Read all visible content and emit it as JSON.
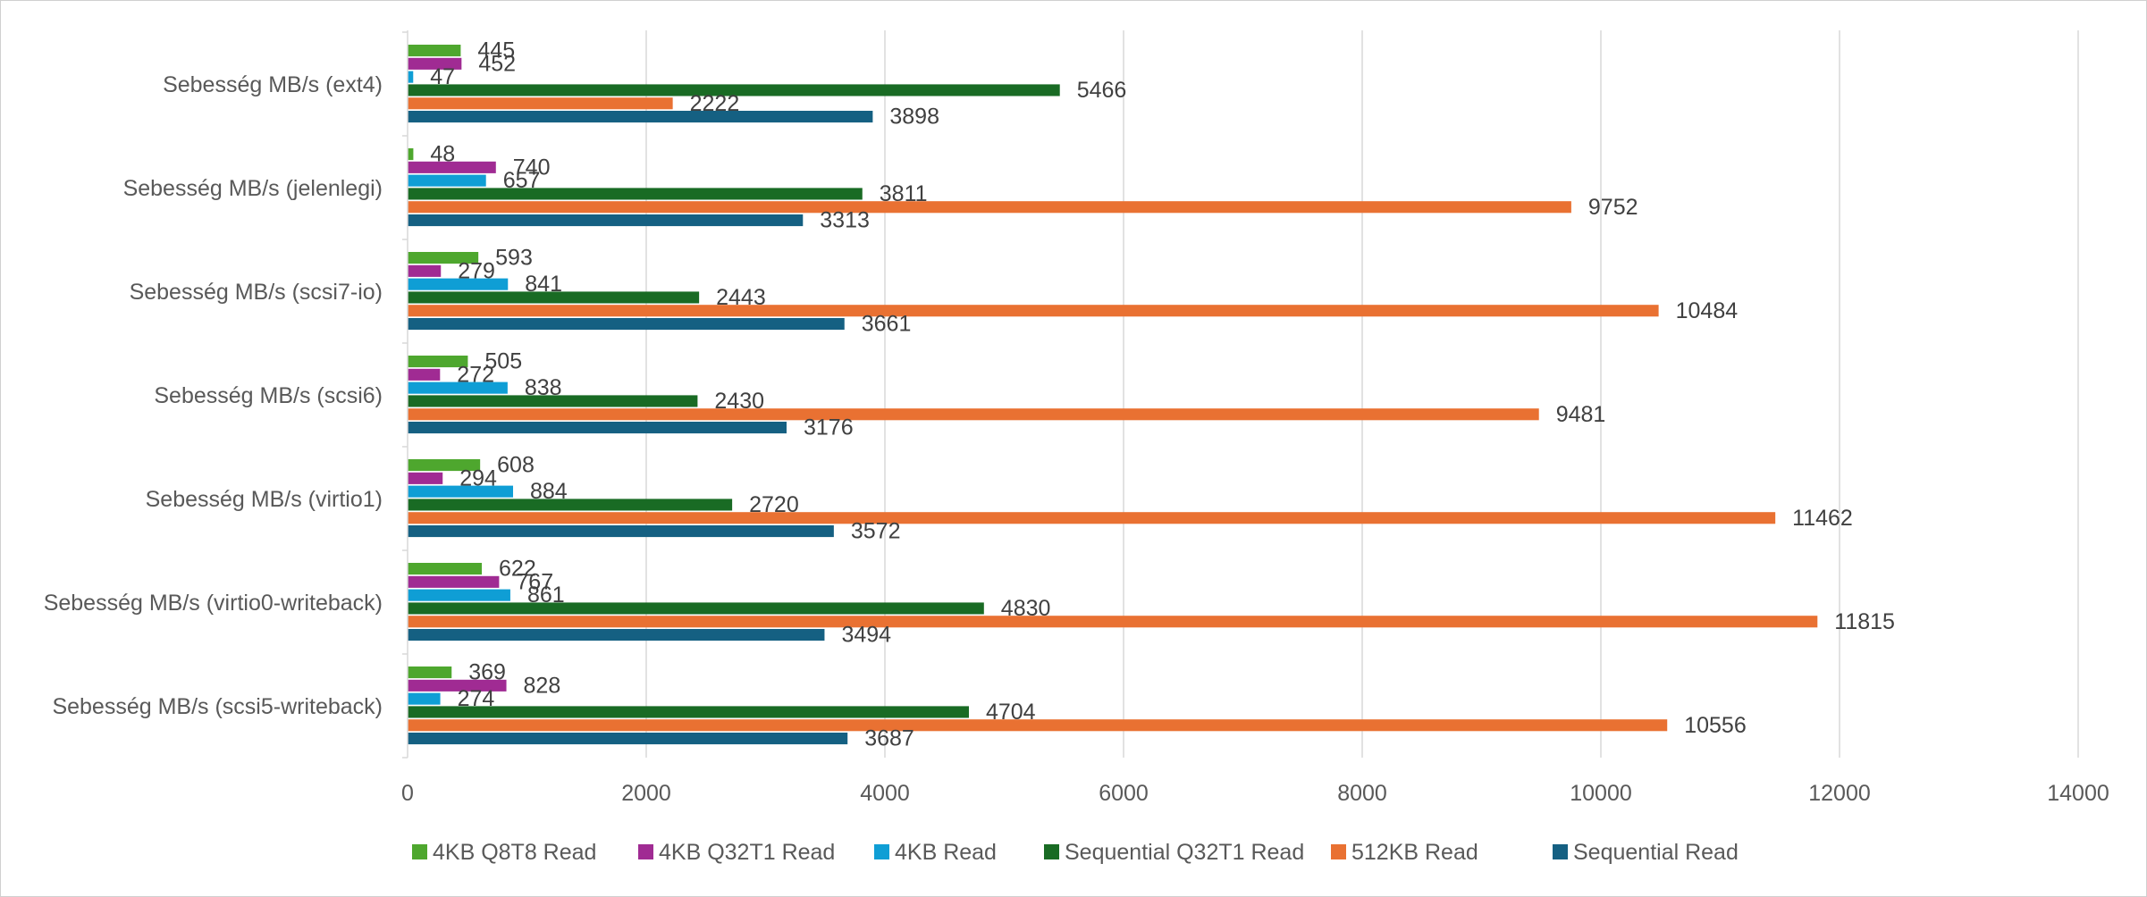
{
  "chart_data": {
    "type": "bar",
    "orientation": "horizontal",
    "title": "",
    "xlabel": "",
    "ylabel": "",
    "xlim": [
      0,
      14000
    ],
    "x_ticks": [
      0,
      2000,
      4000,
      6000,
      8000,
      10000,
      12000,
      14000
    ],
    "grid": "vertical",
    "legend_position": "bottom",
    "categories": [
      "Sebesség MB/s (ext4)",
      "Sebesség MB/s (jelenlegi)",
      "Sebesség MB/s (scsi7-io)",
      "Sebesség MB/s (scsi6)",
      "Sebesség MB/s (virtio1)",
      "Sebesség MB/s (virtio0-writeback)",
      "Sebesség MB/s (scsi5-writeback)"
    ],
    "series": [
      {
        "name": "4KB Q8T8 Read",
        "color": "#4ea72e",
        "values": [
          445,
          48,
          593,
          505,
          608,
          622,
          369
        ]
      },
      {
        "name": "4KB Q32T1 Read",
        "color": "#a02b93",
        "values": [
          452,
          740,
          279,
          272,
          294,
          767,
          828
        ]
      },
      {
        "name": "4KB Read",
        "color": "#0f9ed5",
        "values": [
          47,
          657,
          841,
          838,
          884,
          861,
          274
        ]
      },
      {
        "name": "Sequential Q32T1 Read",
        "color": "#196b24",
        "values": [
          5466,
          3811,
          2443,
          2430,
          2720,
          4830,
          4704
        ]
      },
      {
        "name": "512KB Read",
        "color": "#e97132",
        "values": [
          2222,
          9752,
          10484,
          9481,
          11462,
          11815,
          10556
        ]
      },
      {
        "name": "Sequential Read",
        "color": "#156082",
        "values": [
          3898,
          3313,
          3661,
          3176,
          3572,
          3494,
          3687
        ]
      }
    ]
  }
}
